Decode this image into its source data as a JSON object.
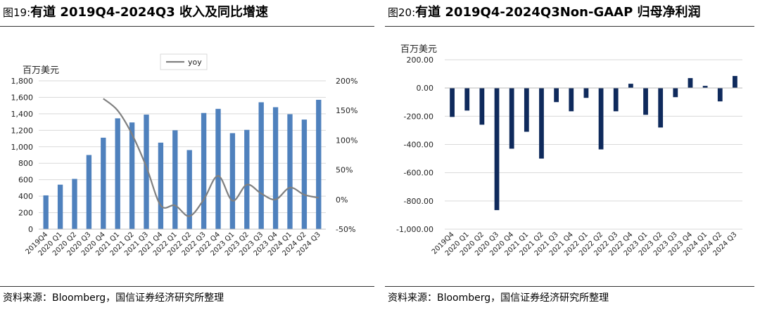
{
  "figures": [
    {
      "number": "图19:",
      "title": "有道 2019Q4-2024Q3 收入及同比增速",
      "source": "资料来源：Bloomberg，国信证券经济研究所整理"
    },
    {
      "number": "图20:",
      "title": "有道 2019Q4-2024Q3Non-GAAP 归母净利润",
      "source": "资料来源：Bloomberg，国信证券经济研究所整理"
    }
  ],
  "chart_data": [
    {
      "type": "bar+line",
      "unit_label": "百万美元",
      "categories": [
        "2019Q4",
        "2020 Q1",
        "2020 Q2",
        "2020 Q3",
        "2020 Q4",
        "2021 Q1",
        "2021 Q2",
        "2021 Q3",
        "2021 Q4",
        "2022 Q1",
        "2022 Q2",
        "2022 Q3",
        "2022 Q4",
        "2023 Q1",
        "2023 Q2",
        "2023 Q3",
        "2023 Q4",
        "2024 Q1",
        "2024 Q2",
        "2024 Q3"
      ],
      "series": [
        {
          "axis": "left",
          "kind": "bar",
          "color": "#4F81BD",
          "values": [
            410,
            540,
            610,
            900,
            1110,
            1345,
            1295,
            1390,
            1050,
            1200,
            960,
            1410,
            1460,
            1165,
            1205,
            1540,
            1480,
            1395,
            1330,
            1570
          ]
        },
        {
          "name": "yoy",
          "axis": "right",
          "kind": "line",
          "color": "#808080",
          "values": [
            null,
            null,
            null,
            null,
            170,
            150,
            110,
            55,
            -10,
            -10,
            -28,
            0,
            40,
            -2,
            25,
            10,
            0,
            20,
            8,
            3
          ]
        }
      ],
      "ylim_left": [
        0,
        1800
      ],
      "yticks_left": [
        "0",
        "200",
        "400",
        "600",
        "800",
        "1,000",
        "1,200",
        "1,400",
        "1,600",
        "1,800"
      ],
      "ylim_right": [
        -50,
        200
      ],
      "yticks_right": [
        "-50%",
        "0%",
        "50%",
        "100%",
        "150%",
        "200%"
      ],
      "legend": "top-center",
      "grid": true
    },
    {
      "type": "bar",
      "unit_label": "百万美元",
      "categories": [
        "2019Q4",
        "2020 Q1",
        "2020 Q2",
        "2020 Q3",
        "2020 Q4",
        "2021 Q1",
        "2021 Q2",
        "2021 Q3",
        "2021 Q4",
        "2022 Q1",
        "2022 Q2",
        "2022 Q3",
        "2022 Q4",
        "2023 Q1",
        "2023 Q2",
        "2023 Q3",
        "2023 Q4",
        "2024 Q1",
        "2024 Q2",
        "2024 Q3"
      ],
      "values": [
        -205,
        -160,
        -260,
        -865,
        -430,
        -310,
        -500,
        -100,
        -165,
        -70,
        -435,
        -165,
        30,
        -190,
        -280,
        -65,
        70,
        15,
        -95,
        85
      ],
      "color": "#0F2A5C",
      "ylim": [
        -1000,
        200
      ],
      "yticks": [
        "-1,000.00",
        "-800.00",
        "-600.00",
        "-400.00",
        "-200.00",
        "0.00",
        "200.00"
      ],
      "grid": true
    }
  ]
}
